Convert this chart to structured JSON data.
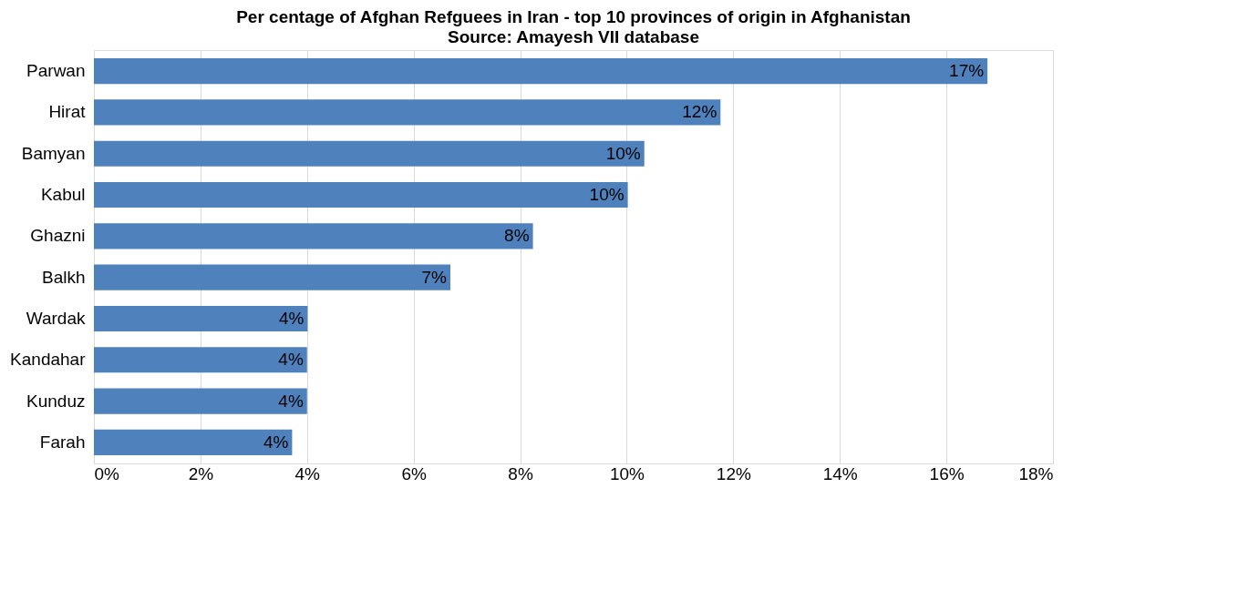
{
  "chart_data": {
    "type": "bar",
    "orientation": "horizontal",
    "title": "Per centage of Afghan Refguees in Iran - top 10 provinces of origin  in Afghanistan",
    "subtitle": "Source: Amayesh  VII database",
    "categories": [
      "Parwan",
      "Hirat",
      "Bamyan",
      "Kabul",
      "Ghazni",
      "Balkh",
      "Wardak",
      "Kandahar",
      "Kunduz",
      "Farah"
    ],
    "values": [
      16.77,
      11.76,
      10.33,
      10.02,
      8.24,
      6.69,
      4.01,
      4.0,
      4.0,
      3.72
    ],
    "value_labels": [
      "17%",
      "12%",
      "10%",
      "10%",
      "8%",
      "7%",
      "4%",
      "4%",
      "4%",
      "4%"
    ],
    "color": "#4f81bd",
    "xlim": [
      0,
      18
    ],
    "xticks": [
      {
        "value": 0,
        "label": "0%"
      },
      {
        "value": 2,
        "label": "2%"
      },
      {
        "value": 4,
        "label": "4%"
      },
      {
        "value": 6,
        "label": "6%"
      },
      {
        "value": 8,
        "label": "8%"
      },
      {
        "value": 10,
        "label": "10%"
      },
      {
        "value": 12,
        "label": "12%"
      },
      {
        "value": 14,
        "label": "14%"
      },
      {
        "value": 16,
        "label": "16%"
      },
      {
        "value": 18,
        "label": "18%"
      }
    ],
    "grid": "x"
  }
}
